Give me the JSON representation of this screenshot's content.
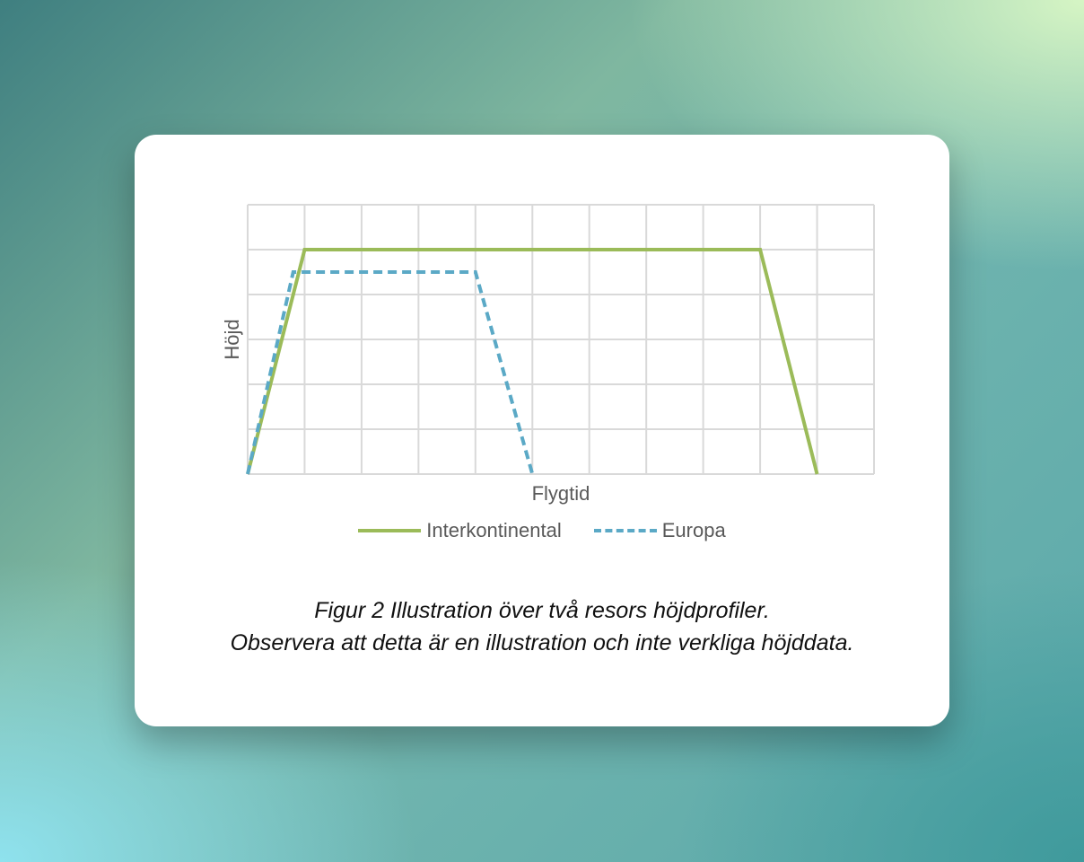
{
  "chart_data": {
    "type": "line",
    "xlabel": "Flygtid",
    "ylabel": "Höjd",
    "xlim": [
      0,
      11
    ],
    "ylim": [
      0,
      6
    ],
    "grid": true,
    "legend_position": "bottom",
    "series": [
      {
        "name": "Interkontinental",
        "color": "#9bbb59",
        "style": "solid",
        "points": [
          [
            0,
            0
          ],
          [
            1,
            5
          ],
          [
            9,
            5
          ],
          [
            10,
            0
          ]
        ]
      },
      {
        "name": "Europa",
        "color": "#5ba9c6",
        "style": "dashed",
        "points": [
          [
            0,
            0
          ],
          [
            0.8,
            4.5
          ],
          [
            4,
            4.5
          ],
          [
            5,
            0
          ]
        ]
      }
    ]
  },
  "caption": {
    "line1": "Figur 2 Illustration över två resors höjdprofiler.",
    "line2": "Observera att detta är en illustration och inte verkliga höjddata."
  }
}
